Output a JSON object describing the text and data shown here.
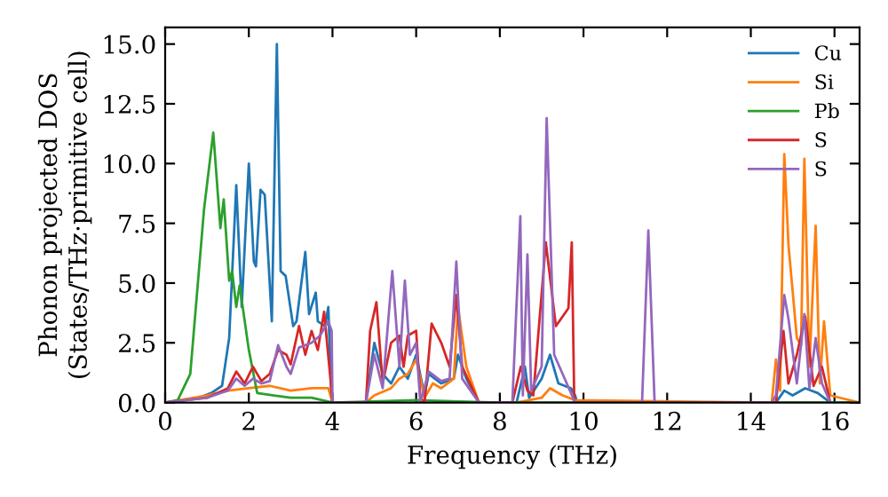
{
  "chart_data": {
    "type": "line",
    "xlabel": "Frequency (THz)",
    "ylabel": "Phonon projected DOS\n(States/THz·primitive cell)",
    "xlim": [
      0,
      16.6
    ],
    "ylim": [
      0,
      15.7
    ],
    "xticks": [
      0,
      2,
      4,
      6,
      8,
      10,
      12,
      14,
      16
    ],
    "yticks": [
      {
        "value": 0,
        "label": "0.0"
      },
      {
        "value": 2.5,
        "label": "2.5"
      },
      {
        "value": 5,
        "label": "5.0"
      },
      {
        "value": 7.5,
        "label": "7.5"
      },
      {
        "value": 10,
        "label": "10.0"
      },
      {
        "value": 12.5,
        "label": "12.5"
      },
      {
        "value": 15,
        "label": "15.0"
      }
    ],
    "legend": "top right",
    "series": [
      {
        "name": "Cu",
        "color": "#1f77b4",
        "x": [
          0,
          0.8,
          1.1,
          1.36,
          1.53,
          1.7,
          1.83,
          2.0,
          2.12,
          2.17,
          2.28,
          2.38,
          2.55,
          2.67,
          2.76,
          2.88,
          3.06,
          3.14,
          3.35,
          3.44,
          3.6,
          3.65,
          3.82,
          3.9,
          3.98,
          4.05,
          4.8,
          5.0,
          5.2,
          5.4,
          5.6,
          5.8,
          6.0,
          6.2,
          6.3,
          6.6,
          6.9,
          7.0,
          7.2,
          7.5,
          8.4,
          8.6,
          8.7,
          9.0,
          9.2,
          9.4,
          9.7,
          9.8,
          9.85,
          14.6,
          14.8,
          15.0,
          15.3,
          15.6,
          15.9,
          16.6
        ],
        "values": [
          0,
          0.2,
          0.4,
          0.7,
          2.7,
          9.1,
          4.0,
          10.0,
          5.9,
          5.7,
          8.9,
          8.7,
          3.4,
          15.0,
          5.5,
          5.3,
          3.2,
          3.4,
          6.3,
          3.7,
          4.6,
          3.4,
          3.2,
          4.0,
          0,
          0,
          0,
          2.5,
          1.2,
          0.8,
          1.5,
          1.0,
          2.0,
          0.3,
          1.2,
          0.8,
          1.0,
          2.0,
          1.0,
          0,
          0,
          1.5,
          0.2,
          1.0,
          2.0,
          0.8,
          0.6,
          0.3,
          0,
          0,
          0.5,
          0.3,
          0.6,
          0.4,
          0,
          0
        ]
      },
      {
        "name": "Si",
        "color": "#ff7f0e",
        "x": [
          0,
          1.0,
          1.5,
          2.0,
          2.5,
          3.0,
          3.5,
          3.9,
          4.0,
          4.8,
          5.0,
          5.4,
          5.6,
          5.8,
          6.0,
          6.2,
          6.4,
          6.6,
          6.9,
          7.0,
          7.2,
          7.5,
          8.4,
          9.0,
          9.2,
          9.5,
          9.8,
          14.5,
          14.6,
          14.7,
          14.8,
          14.9,
          15.1,
          15.2,
          15.28,
          15.4,
          15.55,
          15.65,
          15.75,
          15.9,
          16.6
        ],
        "values": [
          0,
          0.3,
          0.5,
          0.6,
          0.7,
          0.5,
          0.6,
          0.6,
          0,
          0,
          0.3,
          0.6,
          1.0,
          1.2,
          1.8,
          0.2,
          0.8,
          0.6,
          1.0,
          4.0,
          1.5,
          0,
          0,
          0.2,
          0.6,
          0.3,
          0.1,
          0,
          1.8,
          0.5,
          10.4,
          6.6,
          2.7,
          2.4,
          10.2,
          1.5,
          7.4,
          0.8,
          3.4,
          0.3,
          0
        ]
      },
      {
        "name": "Pb",
        "color": "#2ca02c",
        "x": [
          0,
          0.3,
          0.6,
          0.93,
          1.15,
          1.32,
          1.4,
          1.53,
          1.6,
          1.7,
          1.78,
          2.0,
          2.2,
          2.6,
          3.0,
          3.5,
          4.0,
          6.0,
          8.0,
          10.0,
          16.6
        ],
        "values": [
          0,
          0.1,
          1.2,
          8.1,
          11.3,
          7.3,
          8.5,
          5.1,
          5.5,
          4.0,
          4.9,
          2.2,
          0.4,
          0.3,
          0.2,
          0.2,
          0,
          0.1,
          0,
          0,
          0
        ]
      },
      {
        "name": "S",
        "color": "#d62728",
        "x": [
          0,
          1.0,
          1.5,
          1.7,
          1.9,
          2.1,
          2.3,
          2.5,
          2.7,
          2.9,
          3.0,
          3.2,
          3.35,
          3.5,
          3.65,
          3.8,
          3.95,
          4.0,
          4.8,
          4.9,
          5.05,
          5.2,
          5.4,
          5.6,
          5.7,
          5.8,
          6.0,
          6.1,
          6.2,
          6.37,
          6.6,
          6.8,
          6.96,
          7.1,
          7.5,
          8.3,
          8.5,
          8.66,
          8.8,
          9.1,
          9.34,
          9.64,
          9.72,
          9.78,
          14.6,
          14.78,
          14.9,
          15.1,
          15.3,
          15.5,
          15.7,
          15.9
        ],
        "values": [
          0,
          0.2,
          0.6,
          1.3,
          0.8,
          1.5,
          0.9,
          1.2,
          2.2,
          2.0,
          1.6,
          3.2,
          2.0,
          3.0,
          2.2,
          3.8,
          1.0,
          0,
          0,
          3.0,
          4.2,
          0.8,
          2.5,
          2.8,
          1.5,
          2.8,
          3.0,
          0.2,
          0,
          3.3,
          2.5,
          1.5,
          4.5,
          1.5,
          0,
          0,
          1.5,
          0.5,
          0.3,
          6.7,
          3.2,
          3.95,
          6.7,
          0,
          0,
          3.0,
          0.8,
          2.0,
          3.6,
          0.7,
          1.5,
          0
        ]
      },
      {
        "name": "S",
        "color": "#9467bd",
        "x": [
          0,
          1.0,
          1.5,
          1.7,
          1.9,
          2.1,
          2.3,
          2.5,
          2.7,
          2.9,
          3.0,
          3.2,
          3.5,
          3.7,
          3.9,
          3.98,
          4.0,
          4.8,
          5.0,
          5.2,
          5.43,
          5.6,
          5.73,
          5.85,
          6.0,
          6.1,
          6.3,
          6.6,
          6.8,
          6.96,
          7.1,
          7.5,
          8.3,
          8.49,
          8.55,
          8.66,
          8.75,
          9.0,
          9.12,
          9.3,
          9.6,
          9.8,
          11.4,
          11.55,
          11.7,
          14.5,
          14.6,
          14.8,
          14.9,
          15.1,
          15.28,
          15.4,
          15.55,
          15.7,
          15.9
        ],
        "values": [
          0,
          0.2,
          0.5,
          1.0,
          0.7,
          1.0,
          0.8,
          0.9,
          2.4,
          1.5,
          1.2,
          2.3,
          2.5,
          2.8,
          3.4,
          3.0,
          0,
          0,
          2.0,
          0.6,
          5.5,
          1.5,
          5.1,
          2.0,
          2.5,
          0,
          1.3,
          0.9,
          1.0,
          5.9,
          1.0,
          0,
          0,
          7.8,
          0.3,
          6.2,
          0.5,
          1.5,
          11.9,
          2.0,
          0.8,
          0,
          0,
          7.2,
          0,
          0,
          0.3,
          4.5,
          3.5,
          0.8,
          3.7,
          0.6,
          2.7,
          0.8,
          0
        ]
      }
    ]
  }
}
